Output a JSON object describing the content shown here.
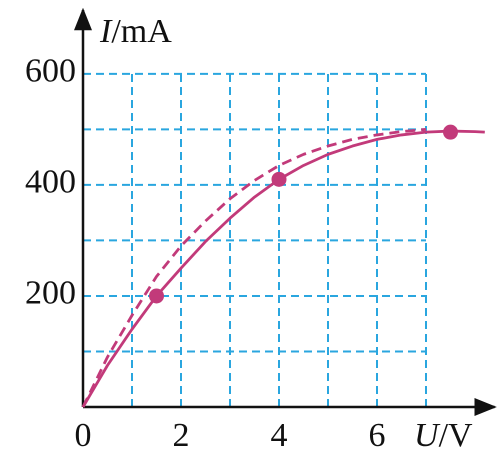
{
  "chart_data": {
    "type": "line",
    "x_label": "U/V",
    "y_label": "I/mA",
    "xlim": [
      0,
      8.4
    ],
    "ylim": [
      0,
      715
    ],
    "xticks": [
      0,
      2,
      4,
      6
    ],
    "yticks": [
      200,
      400,
      600
    ],
    "x_grid": [
      1,
      2,
      3,
      4,
      5,
      6,
      7
    ],
    "y_grid": [
      100,
      200,
      300,
      400,
      500,
      600
    ],
    "grid_color": "#2aa6df",
    "grid": true,
    "series": [
      {
        "color": "#c23a7a",
        "style": "solid",
        "x": [
          0,
          0.5,
          1,
          1.5,
          2,
          2.5,
          3,
          3.5,
          4,
          4.5,
          5,
          5.5,
          6,
          6.5,
          7,
          7.5,
          8,
          8.2
        ],
        "values": [
          0,
          75,
          140,
          200,
          250,
          298,
          340,
          378,
          410,
          435,
          455,
          470,
          482,
          490,
          495,
          497,
          496,
          495
        ]
      },
      {
        "color": "#c23a7a",
        "style": "dashed",
        "x": [
          0,
          0.5,
          1,
          1.5,
          2,
          2.5,
          3,
          3.5,
          4,
          4.5,
          5,
          5.5,
          6,
          6.5,
          7
        ],
        "values": [
          0,
          90,
          165,
          235,
          290,
          335,
          375,
          408,
          435,
          455,
          470,
          482,
          490,
          496,
          500
        ]
      }
    ],
    "points": {
      "color": "#c23a7a",
      "x": [
        1.5,
        4,
        7.5
      ],
      "values": [
        200,
        410,
        495
      ]
    }
  }
}
